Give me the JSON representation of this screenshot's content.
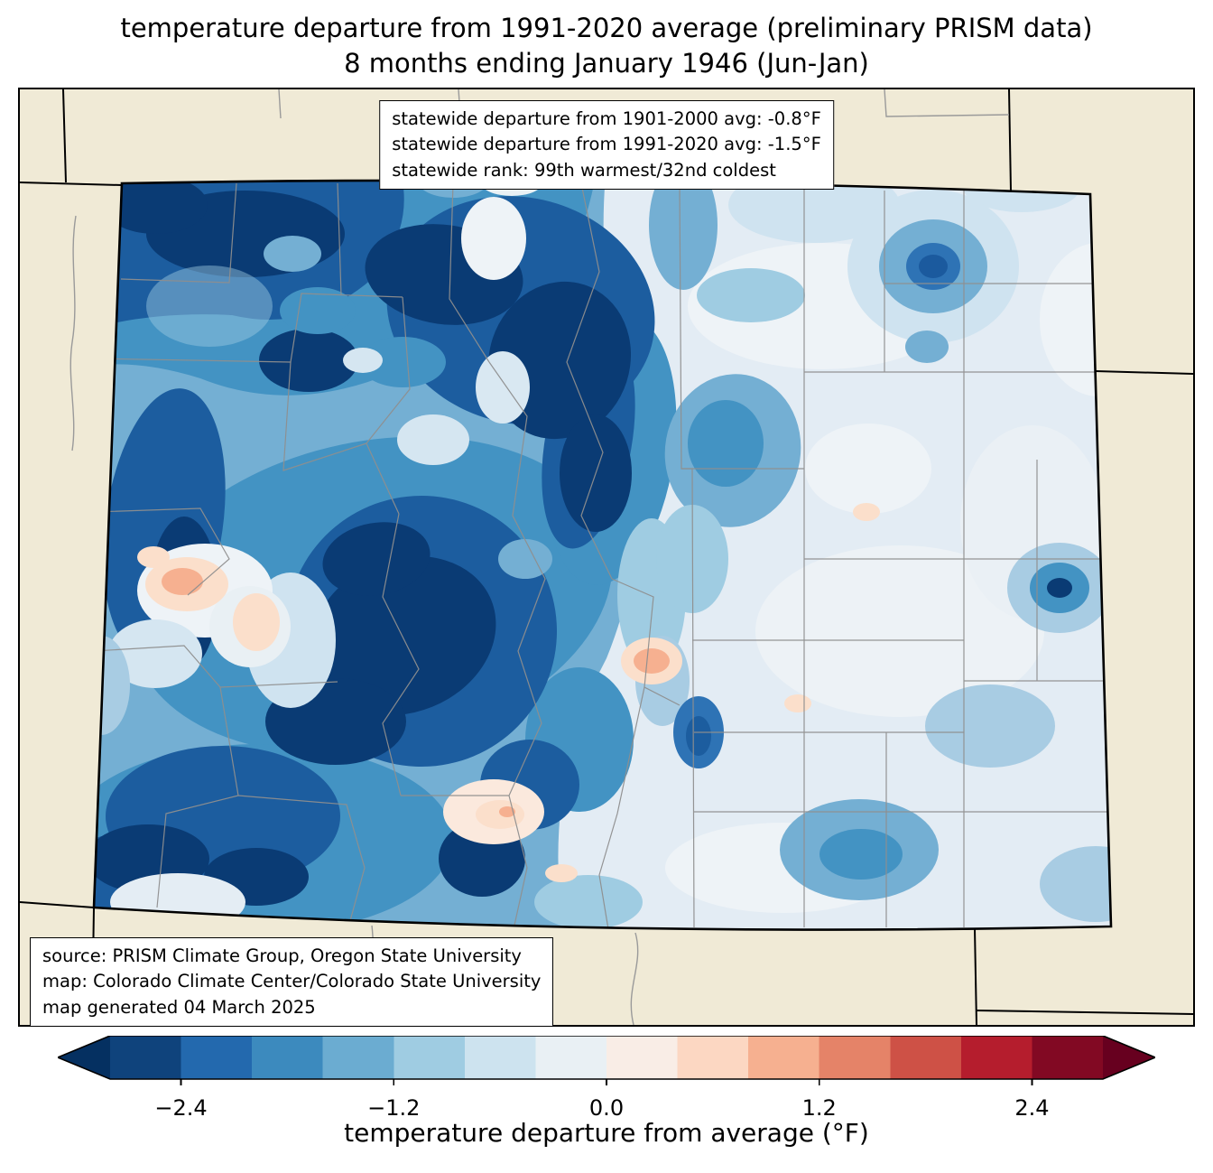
{
  "title": {
    "line1": "temperature departure from 1991-2020 average (preliminary PRISM data)",
    "line2": "8 months ending January 1946 (Jun-Jan)"
  },
  "stats_box": {
    "line1": "statewide departure from 1901-2000 avg: -0.8°F",
    "line2": "statewide departure from 1991-2020 avg: -1.5°F",
    "line3": "statewide rank: 99th warmest/32nd coldest"
  },
  "source_box": {
    "line1": "source: PRISM Climate Group, Oregon State University",
    "line2": "map: Colorado Climate Center/Colorado State University",
    "line3": "map generated 04 March 2025"
  },
  "colorbar": {
    "label": "temperature departure from average (°F)",
    "range": [
      -2.8,
      2.8
    ],
    "ticks": [
      {
        "label": "−2.4",
        "position": 0.0714
      },
      {
        "label": "−1.2",
        "position": 0.2857
      },
      {
        "label": "0.0",
        "position": 0.5
      },
      {
        "label": "1.2",
        "position": 0.7143
      },
      {
        "label": "2.4",
        "position": 0.9286
      }
    ],
    "band_colors": [
      "#0f437c",
      "#2369ae",
      "#3c8abe",
      "#6bacd1",
      "#9fcce2",
      "#cde3ef",
      "#e9f0f4",
      "#f9ede6",
      "#fcd7c2",
      "#f6b090",
      "#e58368",
      "#ce5146",
      "#b51d2d",
      "#820923"
    ],
    "under_color": "#053061",
    "over_color": "#67001f"
  },
  "map_colors": {
    "background_land": "#f0ead6",
    "state_border": "#000000",
    "county_border": "#8f8f8f",
    "coldest": "#0a3b74",
    "warm_spot": "#f6b090"
  }
}
